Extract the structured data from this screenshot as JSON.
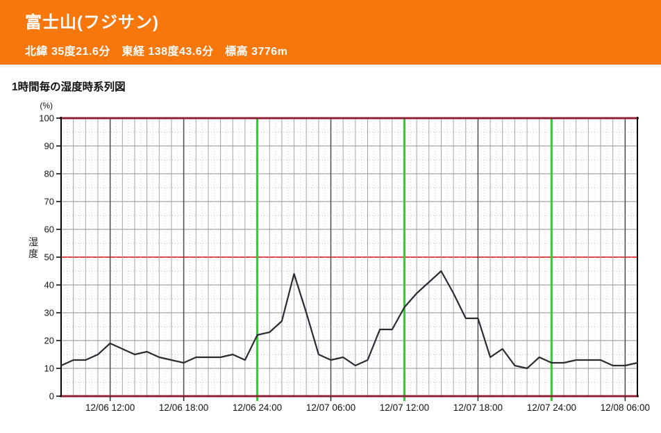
{
  "header": {
    "title": "富士山(フジサン)",
    "coords_line": "北緯 35度21.6分　東経 138度43.6分　標高 3776m",
    "bg_color": "#F7770C",
    "text_color": "#FFFFFF"
  },
  "chart_heading": "1時間毎の湿度時系列図",
  "chart_data": {
    "type": "line",
    "title": "1時間毎の湿度時系列図",
    "ylabel": "湿度",
    "unit_label": "(%)",
    "ylim": [
      0,
      100
    ],
    "ytick_step": 10,
    "grid": "on",
    "x_start": "12/06 08:00",
    "x_end": "12/08 07:00",
    "x_interval_hours": 1,
    "values": [
      11,
      13,
      13,
      15,
      19,
      17,
      15,
      16,
      14,
      13,
      12,
      14,
      14,
      14,
      15,
      13,
      22,
      23,
      27,
      44,
      30,
      15,
      13,
      14,
      11,
      13,
      24,
      24,
      32,
      37,
      41,
      45,
      37,
      28,
      28,
      14,
      17,
      11,
      10,
      14,
      12,
      12,
      13,
      13,
      13,
      11,
      11,
      12
    ],
    "xticks": [
      {
        "label": "12/06 12:00",
        "index": 4
      },
      {
        "label": "12/06 18:00",
        "index": 10
      },
      {
        "label": "12/06 24:00",
        "index": 16
      },
      {
        "label": "12/07 06:00",
        "index": 22
      },
      {
        "label": "12/07 12:00",
        "index": 28
      },
      {
        "label": "12/07 18:00",
        "index": 34
      },
      {
        "label": "12/07 24:00",
        "index": 40
      },
      {
        "label": "12/08 06:00",
        "index": 46
      }
    ],
    "green_vline_indices": [
      16,
      28,
      40
    ],
    "colors": {
      "line": "#2B2B34",
      "boundary_line": "#8F2036",
      "mid_line_50": "#E04545",
      "green_vline": "#2FCE2F",
      "grid_major_h": "#8C8C8C",
      "grid_minor_h": "#BBBBBB",
      "grid_hour_v": "#A5A5A5",
      "grid_6h_v": "#4A4A4A",
      "grid_halfhour_v": "#CCCCCC",
      "axis": "#000000",
      "tick_label": "#111111"
    }
  }
}
